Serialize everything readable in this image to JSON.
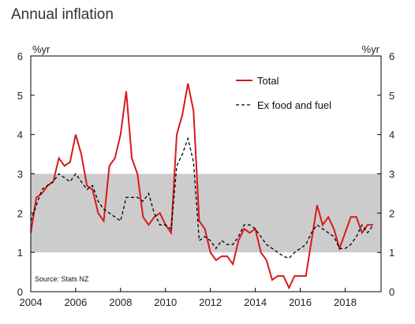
{
  "chart_data": {
    "type": "line",
    "title": "Annual inflation",
    "source": "Source: Stats NZ",
    "ylabel_left": "%yr",
    "ylabel_right": "%yr",
    "xlim": [
      2004,
      2019.6
    ],
    "ylim": [
      0,
      6
    ],
    "xticks": [
      "2004",
      "2006",
      "2008",
      "2010",
      "2012",
      "2014",
      "2016",
      "2018"
    ],
    "yticks": [
      "0",
      "1",
      "2",
      "3",
      "4",
      "5",
      "6"
    ],
    "target_band": [
      1,
      3
    ],
    "legend_position": "top-right",
    "colors": {
      "total": "#d7191c",
      "ex": "#000000",
      "band": "#cccccc"
    },
    "series": [
      {
        "name": "Total",
        "style": "solid",
        "x": [
          2004.0,
          2004.25,
          2004.5,
          2004.75,
          2005.0,
          2005.25,
          2005.5,
          2005.75,
          2006.0,
          2006.25,
          2006.5,
          2006.75,
          2007.0,
          2007.25,
          2007.5,
          2007.75,
          2008.0,
          2008.25,
          2008.5,
          2008.75,
          2009.0,
          2009.25,
          2009.5,
          2009.75,
          2010.0,
          2010.25,
          2010.5,
          2010.75,
          2011.0,
          2011.25,
          2011.5,
          2011.75,
          2012.0,
          2012.25,
          2012.5,
          2012.75,
          2013.0,
          2013.25,
          2013.5,
          2013.75,
          2014.0,
          2014.25,
          2014.5,
          2014.75,
          2015.0,
          2015.25,
          2015.5,
          2015.75,
          2016.0,
          2016.25,
          2016.5,
          2016.75,
          2017.0,
          2017.25,
          2017.5,
          2017.75,
          2018.0,
          2018.25,
          2018.5,
          2018.75,
          2019.0,
          2019.25
        ],
        "values": [
          1.5,
          2.4,
          2.5,
          2.7,
          2.8,
          3.4,
          3.2,
          3.3,
          4.0,
          3.5,
          2.7,
          2.6,
          2.0,
          1.8,
          3.2,
          3.4,
          4.0,
          5.1,
          3.4,
          3.0,
          1.9,
          1.7,
          1.9,
          2.0,
          1.7,
          1.5,
          4.0,
          4.5,
          5.3,
          4.6,
          1.8,
          1.6,
          1.0,
          0.8,
          0.9,
          0.9,
          0.7,
          1.3,
          1.6,
          1.5,
          1.6,
          1.0,
          0.8,
          0.3,
          0.4,
          0.4,
          0.1,
          0.4,
          0.4,
          0.4,
          1.3,
          2.2,
          1.7,
          1.9,
          1.6,
          1.1,
          1.5,
          1.9,
          1.9,
          1.5,
          1.7,
          1.7
        ]
      },
      {
        "name": "Ex food and fuel",
        "style": "dashed",
        "x": [
          2004.0,
          2004.25,
          2004.5,
          2004.75,
          2005.0,
          2005.25,
          2005.5,
          2005.75,
          2006.0,
          2006.25,
          2006.5,
          2006.75,
          2007.0,
          2007.25,
          2007.5,
          2007.75,
          2008.0,
          2008.25,
          2008.5,
          2008.75,
          2009.0,
          2009.25,
          2009.5,
          2009.75,
          2010.0,
          2010.25,
          2010.5,
          2010.75,
          2011.0,
          2011.25,
          2011.5,
          2011.75,
          2012.0,
          2012.25,
          2012.5,
          2012.75,
          2013.0,
          2013.25,
          2013.5,
          2013.75,
          2014.0,
          2014.25,
          2014.5,
          2014.75,
          2015.0,
          2015.25,
          2015.5,
          2015.75,
          2016.0,
          2016.25,
          2016.5,
          2016.75,
          2017.0,
          2017.25,
          2017.5,
          2017.75,
          2018.0,
          2018.25,
          2018.5,
          2018.75,
          2019.0,
          2019.25
        ],
        "values": [
          1.8,
          2.2,
          2.6,
          2.7,
          2.8,
          3.0,
          2.9,
          2.8,
          3.0,
          2.8,
          2.6,
          2.7,
          2.3,
          2.1,
          2.0,
          1.9,
          1.8,
          2.4,
          2.4,
          2.4,
          2.3,
          2.5,
          2.0,
          1.7,
          1.7,
          1.6,
          3.2,
          3.5,
          3.9,
          3.3,
          1.3,
          1.4,
          1.3,
          1.1,
          1.3,
          1.2,
          1.2,
          1.4,
          1.7,
          1.7,
          1.6,
          1.4,
          1.2,
          1.1,
          1.0,
          0.9,
          0.85,
          1.0,
          1.1,
          1.2,
          1.5,
          1.7,
          1.6,
          1.5,
          1.4,
          1.1,
          1.1,
          1.2,
          1.4,
          1.7,
          1.5,
          1.7
        ]
      }
    ]
  }
}
